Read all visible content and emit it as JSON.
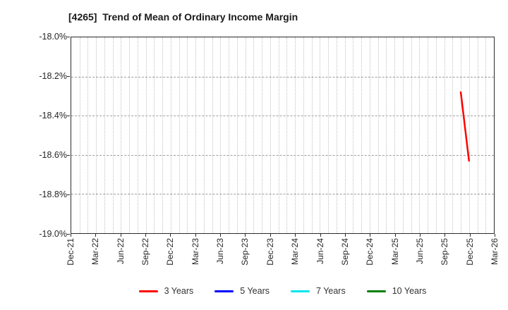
{
  "chart_data": {
    "type": "line",
    "title": "[4265]  Trend of Mean of Ordinary Income Margin",
    "xlabel": "",
    "ylabel": "",
    "ylim": [
      -19.0,
      -18.0
    ],
    "yticks": [
      -18.0,
      -18.2,
      -18.4,
      -18.6,
      -18.8,
      -19.0
    ],
    "yticklabels": [
      "-18.0%",
      "-18.2%",
      "-18.4%",
      "-18.6%",
      "-18.8%",
      "-19.0%"
    ],
    "x_start": "Dec-21",
    "x_end": "Mar-26",
    "xticklabels": [
      "Dec-21",
      "Mar-22",
      "Jun-22",
      "Sep-22",
      "Dec-22",
      "Mar-23",
      "Jun-23",
      "Sep-23",
      "Dec-23",
      "Mar-24",
      "Jun-24",
      "Sep-24",
      "Dec-24",
      "Mar-25",
      "Jun-25",
      "Sep-25",
      "Dec-25",
      "Mar-26"
    ],
    "grid": {
      "vertical": "monthly dotted",
      "horizontal": "at yticks dashed"
    },
    "legend_position": "bottom-center",
    "series": [
      {
        "name": "3 Years",
        "color": "#ff0000",
        "points": [
          {
            "x": "Nov-25",
            "y": -18.28
          },
          {
            "x": "Dec-25",
            "y": -18.63
          }
        ]
      },
      {
        "name": "5 Years",
        "color": "#0000ff",
        "points": []
      },
      {
        "name": "7 Years",
        "color": "#00e5ee",
        "points": []
      },
      {
        "name": "10 Years",
        "color": "#008000",
        "points": []
      }
    ]
  }
}
